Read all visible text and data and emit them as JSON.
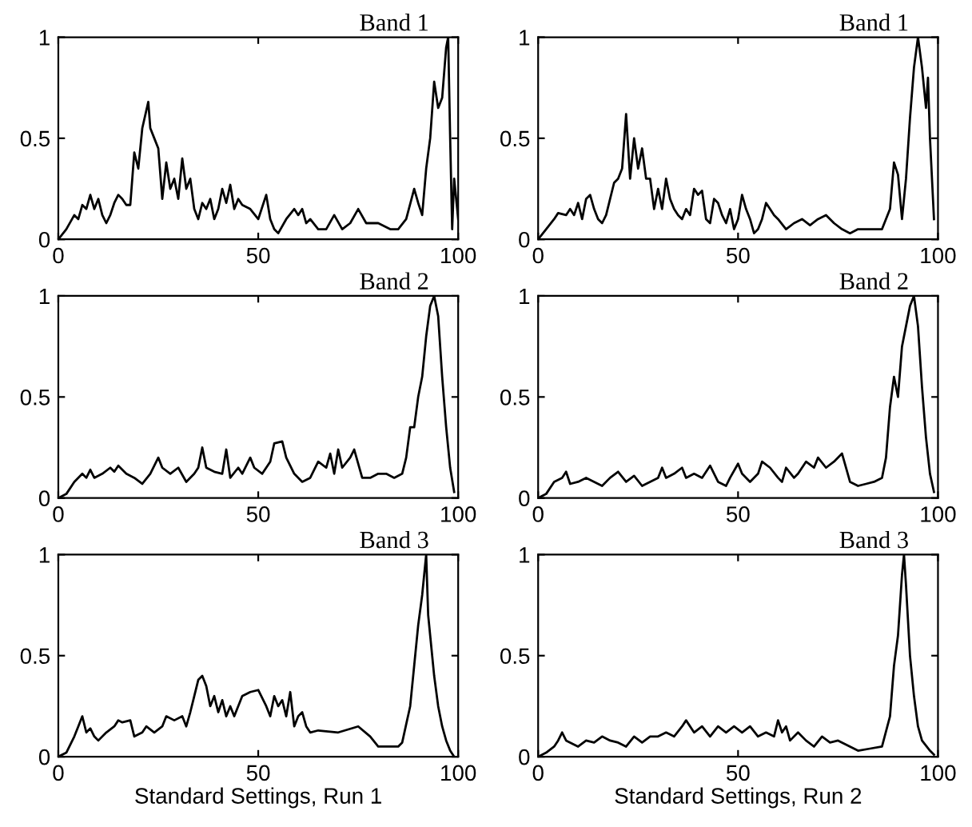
{
  "chart_data": [
    {
      "type": "line",
      "title": "Band 1",
      "xlim": [
        0,
        100
      ],
      "ylim": [
        0,
        1
      ],
      "xticks": [
        0,
        50,
        100
      ],
      "yticks": [
        0,
        0.5,
        1
      ],
      "grid": false,
      "series": [
        {
          "color": "#000000",
          "x": [
            0,
            2,
            4,
            5,
            6,
            7,
            8,
            9,
            10,
            11,
            12,
            13,
            14,
            15,
            16,
            17,
            18,
            19,
            20,
            21,
            22.5,
            23,
            24,
            25,
            26,
            27,
            28,
            29,
            30,
            31,
            32,
            33,
            34,
            35,
            36,
            37,
            38,
            39,
            40,
            41,
            42,
            43,
            44,
            45,
            46,
            48,
            50,
            52,
            53,
            54,
            55,
            57,
            59,
            60,
            61,
            62,
            63,
            65,
            67,
            69,
            71,
            73,
            75,
            77,
            80,
            83,
            85,
            87,
            89,
            90,
            91,
            92,
            93,
            94,
            95,
            96,
            97,
            97.5,
            98,
            98.5,
            99,
            100
          ],
          "values": [
            0,
            0.05,
            0.12,
            0.1,
            0.17,
            0.15,
            0.22,
            0.15,
            0.2,
            0.12,
            0.08,
            0.12,
            0.18,
            0.22,
            0.2,
            0.17,
            0.17,
            0.43,
            0.35,
            0.55,
            0.68,
            0.55,
            0.5,
            0.45,
            0.2,
            0.38,
            0.25,
            0.3,
            0.2,
            0.4,
            0.25,
            0.3,
            0.15,
            0.1,
            0.18,
            0.15,
            0.2,
            0.1,
            0.15,
            0.25,
            0.18,
            0.27,
            0.15,
            0.2,
            0.17,
            0.15,
            0.1,
            0.22,
            0.1,
            0.05,
            0.03,
            0.1,
            0.15,
            0.12,
            0.15,
            0.08,
            0.1,
            0.05,
            0.05,
            0.12,
            0.05,
            0.08,
            0.15,
            0.08,
            0.08,
            0.05,
            0.05,
            0.1,
            0.25,
            0.18,
            0.12,
            0.35,
            0.5,
            0.78,
            0.65,
            0.7,
            0.95,
            1.0,
            0.5,
            0.05,
            0.3,
            0.1
          ]
        }
      ]
    },
    {
      "type": "line",
      "title": "Band 1",
      "xlim": [
        0,
        100
      ],
      "ylim": [
        0,
        1
      ],
      "xticks": [
        0,
        50,
        100
      ],
      "yticks": [
        0,
        0.5,
        1
      ],
      "grid": false,
      "series": [
        {
          "color": "#000000",
          "x": [
            0,
            2,
            4,
            5,
            7,
            8,
            9,
            10,
            11,
            12,
            13,
            14,
            15,
            16,
            17,
            18,
            19,
            20,
            21,
            22,
            23,
            24,
            25,
            26,
            27,
            28,
            29,
            30,
            31,
            32,
            33,
            34,
            35,
            36,
            37,
            38,
            39,
            40,
            41,
            42,
            43,
            44,
            45,
            46,
            47,
            48,
            49,
            50,
            51,
            52,
            53,
            54,
            55,
            56,
            57,
            58,
            59,
            60,
            62,
            64,
            66,
            68,
            70,
            72,
            74,
            76,
            78,
            80,
            82,
            84,
            86,
            88,
            89,
            90,
            91,
            92,
            93,
            94,
            95,
            96,
            97,
            97.5,
            98,
            99
          ],
          "values": [
            0,
            0.05,
            0.1,
            0.13,
            0.12,
            0.15,
            0.12,
            0.18,
            0.1,
            0.2,
            0.22,
            0.15,
            0.1,
            0.08,
            0.12,
            0.2,
            0.28,
            0.3,
            0.35,
            0.62,
            0.3,
            0.5,
            0.35,
            0.45,
            0.3,
            0.3,
            0.15,
            0.25,
            0.15,
            0.3,
            0.2,
            0.15,
            0.12,
            0.1,
            0.15,
            0.12,
            0.25,
            0.22,
            0.24,
            0.1,
            0.08,
            0.2,
            0.18,
            0.12,
            0.08,
            0.15,
            0.05,
            0.1,
            0.22,
            0.15,
            0.1,
            0.03,
            0.05,
            0.1,
            0.18,
            0.15,
            0.12,
            0.1,
            0.05,
            0.08,
            0.1,
            0.07,
            0.1,
            0.12,
            0.08,
            0.05,
            0.03,
            0.05,
            0.05,
            0.05,
            0.05,
            0.15,
            0.38,
            0.32,
            0.1,
            0.3,
            0.6,
            0.85,
            1.0,
            0.85,
            0.65,
            0.8,
            0.5,
            0.1
          ]
        }
      ]
    },
    {
      "type": "line",
      "title": "Band 2",
      "xlim": [
        0,
        100
      ],
      "ylim": [
        0,
        1
      ],
      "xticks": [
        0,
        50,
        100
      ],
      "yticks": [
        0,
        0.5,
        1
      ],
      "grid": false,
      "series": [
        {
          "color": "#000000",
          "x": [
            0,
            2,
            4,
            6,
            7,
            8,
            9,
            11,
            13,
            14,
            15,
            17,
            19,
            21,
            23,
            25,
            26,
            28,
            30,
            32,
            34,
            35,
            36,
            37,
            39,
            41,
            42,
            43,
            45,
            46,
            48,
            49,
            51,
            53,
            54,
            56,
            57,
            59,
            61,
            63,
            65,
            67,
            68,
            69,
            70,
            71,
            73,
            74,
            76,
            78,
            80,
            82,
            84,
            86,
            87,
            88,
            89,
            90,
            91,
            92,
            93,
            94,
            95,
            96,
            97,
            98,
            99
          ],
          "values": [
            0,
            0.02,
            0.08,
            0.12,
            0.1,
            0.14,
            0.1,
            0.12,
            0.15,
            0.13,
            0.16,
            0.12,
            0.1,
            0.07,
            0.12,
            0.2,
            0.15,
            0.12,
            0.15,
            0.08,
            0.12,
            0.15,
            0.25,
            0.15,
            0.13,
            0.12,
            0.24,
            0.1,
            0.15,
            0.12,
            0.2,
            0.15,
            0.12,
            0.18,
            0.27,
            0.28,
            0.2,
            0.12,
            0.08,
            0.1,
            0.18,
            0.15,
            0.22,
            0.12,
            0.24,
            0.15,
            0.2,
            0.24,
            0.1,
            0.1,
            0.12,
            0.12,
            0.1,
            0.12,
            0.2,
            0.35,
            0.35,
            0.5,
            0.6,
            0.8,
            0.95,
            1.0,
            0.9,
            0.6,
            0.35,
            0.15,
            0.03
          ]
        }
      ]
    },
    {
      "type": "line",
      "title": "Band 2",
      "xlim": [
        0,
        100
      ],
      "ylim": [
        0,
        1
      ],
      "xticks": [
        0,
        50,
        100
      ],
      "yticks": [
        0,
        0.5,
        1
      ],
      "grid": false,
      "series": [
        {
          "color": "#000000",
          "x": [
            0,
            2,
            4,
            6,
            7,
            8,
            10,
            12,
            14,
            16,
            18,
            20,
            22,
            24,
            26,
            28,
            30,
            31,
            32,
            34,
            36,
            37,
            39,
            41,
            43,
            45,
            47,
            48,
            50,
            51,
            53,
            55,
            56,
            58,
            60,
            61,
            62,
            64,
            65,
            67,
            69,
            70,
            72,
            74,
            76,
            78,
            80,
            82,
            84,
            86,
            87,
            88,
            89,
            90,
            91,
            92,
            93,
            94,
            95,
            96,
            97,
            98,
            99
          ],
          "values": [
            0,
            0.02,
            0.08,
            0.1,
            0.13,
            0.07,
            0.08,
            0.1,
            0.08,
            0.06,
            0.1,
            0.13,
            0.08,
            0.11,
            0.06,
            0.08,
            0.1,
            0.15,
            0.1,
            0.12,
            0.15,
            0.1,
            0.12,
            0.1,
            0.16,
            0.08,
            0.06,
            0.1,
            0.17,
            0.12,
            0.08,
            0.12,
            0.18,
            0.15,
            0.1,
            0.08,
            0.15,
            0.1,
            0.12,
            0.18,
            0.15,
            0.2,
            0.15,
            0.18,
            0.22,
            0.08,
            0.06,
            0.07,
            0.08,
            0.1,
            0.2,
            0.45,
            0.6,
            0.5,
            0.75,
            0.85,
            0.95,
            1.0,
            0.85,
            0.55,
            0.3,
            0.12,
            0.03
          ]
        }
      ]
    },
    {
      "type": "line",
      "title": "Band 3",
      "xlabel": "Standard Settings, Run 1",
      "xlim": [
        0,
        100
      ],
      "ylim": [
        0,
        1
      ],
      "xticks": [
        0,
        50,
        100
      ],
      "yticks": [
        0,
        0.5,
        1
      ],
      "grid": false,
      "series": [
        {
          "color": "#000000",
          "x": [
            0,
            2,
            4,
            5,
            6,
            7,
            8,
            9,
            10,
            12,
            14,
            15,
            16,
            18,
            19,
            21,
            22,
            24,
            26,
            27,
            29,
            31,
            32,
            33,
            34,
            35,
            36,
            37,
            38,
            39,
            40,
            41,
            42,
            43,
            44,
            46,
            48,
            50,
            52,
            53,
            54,
            55,
            56,
            57,
            58,
            59,
            60,
            61,
            62,
            63,
            65,
            70,
            75,
            78,
            80,
            85,
            86,
            88,
            89,
            90,
            91,
            92,
            92.5,
            93,
            94,
            95,
            96,
            97,
            98,
            99
          ],
          "values": [
            0,
            0.02,
            0.1,
            0.15,
            0.2,
            0.12,
            0.14,
            0.1,
            0.08,
            0.12,
            0.15,
            0.18,
            0.17,
            0.18,
            0.1,
            0.12,
            0.15,
            0.12,
            0.15,
            0.2,
            0.18,
            0.2,
            0.15,
            0.22,
            0.3,
            0.38,
            0.4,
            0.35,
            0.25,
            0.3,
            0.22,
            0.28,
            0.2,
            0.25,
            0.2,
            0.3,
            0.32,
            0.33,
            0.25,
            0.2,
            0.3,
            0.25,
            0.28,
            0.2,
            0.32,
            0.15,
            0.2,
            0.22,
            0.15,
            0.12,
            0.13,
            0.12,
            0.15,
            0.1,
            0.05,
            0.05,
            0.07,
            0.25,
            0.45,
            0.65,
            0.8,
            1.0,
            0.7,
            0.6,
            0.4,
            0.25,
            0.15,
            0.08,
            0.03,
            0
          ]
        }
      ]
    },
    {
      "type": "line",
      "title": "Band 3",
      "xlabel": "Standard Settings, Run 2",
      "xlim": [
        0,
        100
      ],
      "ylim": [
        0,
        1
      ],
      "xticks": [
        0,
        50,
        100
      ],
      "yticks": [
        0,
        0.5,
        1
      ],
      "grid": false,
      "series": [
        {
          "color": "#000000",
          "x": [
            0,
            2,
            4,
            5,
            6,
            7,
            8,
            10,
            12,
            14,
            16,
            18,
            20,
            22,
            24,
            26,
            28,
            30,
            32,
            34,
            36,
            37,
            39,
            41,
            43,
            45,
            47,
            49,
            51,
            53,
            55,
            57,
            59,
            60,
            61,
            62,
            63,
            65,
            67,
            69,
            71,
            73,
            75,
            78,
            80,
            83,
            86,
            88,
            89,
            90,
            91,
            91.5,
            92,
            93,
            94,
            95,
            96,
            98,
            99
          ],
          "values": [
            0,
            0.02,
            0.05,
            0.08,
            0.12,
            0.08,
            0.07,
            0.05,
            0.08,
            0.07,
            0.1,
            0.08,
            0.07,
            0.05,
            0.1,
            0.07,
            0.1,
            0.1,
            0.12,
            0.1,
            0.15,
            0.18,
            0.12,
            0.15,
            0.1,
            0.15,
            0.12,
            0.15,
            0.12,
            0.15,
            0.1,
            0.12,
            0.1,
            0.18,
            0.12,
            0.15,
            0.08,
            0.12,
            0.08,
            0.05,
            0.1,
            0.07,
            0.08,
            0.05,
            0.03,
            0.04,
            0.05,
            0.2,
            0.45,
            0.6,
            0.9,
            1.0,
            0.85,
            0.5,
            0.3,
            0.15,
            0.08,
            0.03,
            0.01
          ]
        }
      ]
    }
  ]
}
